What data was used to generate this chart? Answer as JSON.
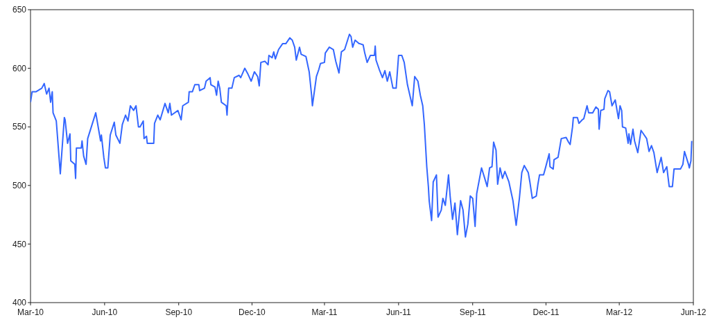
{
  "chart_data": {
    "type": "line",
    "x": [
      "2010-03-01",
      "2010-03-03",
      "2010-03-08",
      "2010-03-15",
      "2010-03-18",
      "2010-03-21",
      "2010-03-24",
      "2010-03-26",
      "2010-03-28",
      "2010-03-29",
      "2010-04-02",
      "2010-04-07",
      "2010-04-12",
      "2010-04-13",
      "2010-04-16",
      "2010-04-19",
      "2010-04-20",
      "2010-04-25",
      "2010-04-26",
      "2010-04-27",
      "2010-05-03",
      "2010-05-04",
      "2010-05-06",
      "2010-05-09",
      "2010-05-11",
      "2010-05-21",
      "2010-05-27",
      "2010-05-28",
      "2010-05-31",
      "2010-06-02",
      "2010-06-05",
      "2010-06-08",
      "2010-06-13",
      "2010-06-15",
      "2010-06-20",
      "2010-06-23",
      "2010-06-27",
      "2010-06-30",
      "2010-07-03",
      "2010-07-07",
      "2010-07-10",
      "2010-07-13",
      "2010-07-15",
      "2010-07-19",
      "2010-07-20",
      "2010-07-23",
      "2010-07-24",
      "2010-08-01",
      "2010-08-02",
      "2010-08-06",
      "2010-08-09",
      "2010-08-15",
      "2010-08-19",
      "2010-08-21",
      "2010-08-23",
      "2010-08-31",
      "2010-09-04",
      "2010-09-06",
      "2010-09-13",
      "2010-09-14",
      "2010-09-18",
      "2010-09-21",
      "2010-09-26",
      "2010-09-27",
      "2010-10-03",
      "2010-10-05",
      "2010-10-10",
      "2010-10-11",
      "2010-10-16",
      "2010-10-18",
      "2010-10-20",
      "2010-10-22",
      "2010-10-24",
      "2010-10-30",
      "2010-10-31",
      "2010-11-02",
      "2010-11-06",
      "2010-11-09",
      "2010-11-15",
      "2010-11-17",
      "2010-11-22",
      "2010-11-26",
      "2010-11-30",
      "2010-12-04",
      "2010-12-08",
      "2010-12-10",
      "2010-12-12",
      "2010-12-17",
      "2010-12-21",
      "2010-12-22",
      "2010-12-26",
      "2010-12-28",
      "2010-12-30",
      "2011-01-03",
      "2011-01-08",
      "2011-01-12",
      "2011-01-17",
      "2011-01-20",
      "2011-01-23",
      "2011-01-25",
      "2011-01-29",
      "2011-01-31",
      "2011-02-06",
      "2011-02-10",
      "2011-02-13",
      "2011-02-14",
      "2011-02-19",
      "2011-02-22",
      "2011-02-24",
      "2011-03-01",
      "2011-03-02",
      "2011-03-07",
      "2011-03-12",
      "2011-03-15",
      "2011-03-19",
      "2011-03-22",
      "2011-03-26",
      "2011-04-01",
      "2011-04-03",
      "2011-04-05",
      "2011-04-08",
      "2011-04-13",
      "2011-04-14",
      "2011-04-18",
      "2011-04-20",
      "2011-04-23",
      "2011-04-27",
      "2011-05-02",
      "2011-05-03",
      "2011-05-04",
      "2011-05-08",
      "2011-05-12",
      "2011-05-15",
      "2011-05-18",
      "2011-05-21",
      "2011-05-25",
      "2011-05-29",
      "2011-06-01",
      "2011-06-05",
      "2011-06-08",
      "2011-06-12",
      "2011-06-18",
      "2011-06-21",
      "2011-06-25",
      "2011-06-28",
      "2011-07-01",
      "2011-07-03",
      "2011-07-06",
      "2011-07-08",
      "2011-07-09",
      "2011-07-12",
      "2011-07-14",
      "2011-07-18",
      "2011-07-20",
      "2011-07-24",
      "2011-07-26",
      "2011-07-29",
      "2011-08-02",
      "2011-08-04",
      "2011-08-07",
      "2011-08-10",
      "2011-08-13",
      "2011-08-17",
      "2011-08-20",
      "2011-08-23",
      "2011-08-26",
      "2011-08-29",
      "2011-09-01",
      "2011-09-04",
      "2011-09-06",
      "2011-09-12",
      "2011-09-16",
      "2011-09-19",
      "2011-09-22",
      "2011-09-25",
      "2011-09-27",
      "2011-09-30",
      "2011-10-02",
      "2011-10-05",
      "2011-10-08",
      "2011-10-11",
      "2011-10-16",
      "2011-10-21",
      "2011-10-25",
      "2011-10-29",
      "2011-11-01",
      "2011-11-04",
      "2011-11-09",
      "2011-11-11",
      "2011-11-14",
      "2011-11-19",
      "2011-11-21",
      "2011-11-23",
      "2011-11-28",
      "2011-11-30",
      "2011-12-05",
      "2011-12-06",
      "2011-12-10",
      "2011-12-11",
      "2011-12-16",
      "2011-12-18",
      "2011-12-20",
      "2011-12-26",
      "2011-12-29",
      "2011-12-31",
      "2012-01-03",
      "2012-01-04",
      "2012-01-09",
      "2012-01-11",
      "2012-01-15",
      "2012-01-17",
      "2012-01-21",
      "2012-01-23",
      "2012-01-28",
      "2012-02-01",
      "2012-02-04",
      "2012-02-05",
      "2012-02-07",
      "2012-02-11",
      "2012-02-12",
      "2012-02-16",
      "2012-02-18",
      "2012-02-21",
      "2012-02-25",
      "2012-02-29",
      "2012-03-02",
      "2012-03-04",
      "2012-03-05",
      "2012-03-09",
      "2012-03-12",
      "2012-03-13",
      "2012-03-15",
      "2012-03-18",
      "2012-03-20",
      "2012-03-24",
      "2012-03-28",
      "2012-04-01",
      "2012-04-04",
      "2012-04-07",
      "2012-04-10",
      "2012-04-13",
      "2012-04-17",
      "2012-04-22",
      "2012-04-25",
      "2012-04-29",
      "2012-05-02",
      "2012-05-06",
      "2012-05-08",
      "2012-05-16",
      "2012-05-19",
      "2012-05-21",
      "2012-05-26",
      "2012-05-27",
      "2012-05-29",
      "2012-05-30"
    ],
    "series": [
      {
        "color": "#3366ff",
        "values": [
          571,
          580,
          580,
          583,
          587,
          578,
          583,
          571,
          580,
          562,
          555,
          510,
          558,
          556,
          536,
          544,
          521,
          518,
          506,
          532,
          532,
          538,
          525,
          518,
          540,
          562,
          538,
          543,
          524,
          515,
          515,
          543,
          554,
          543,
          536,
          552,
          560,
          555,
          568,
          564,
          568,
          550,
          550,
          555,
          540,
          542,
          536,
          536,
          553,
          560,
          556,
          570,
          562,
          570,
          560,
          564,
          556,
          568,
          571,
          580,
          580,
          586,
          586,
          581,
          583,
          589,
          592,
          586,
          584,
          577,
          589,
          583,
          571,
          568,
          560,
          583,
          583,
          592,
          594,
          592,
          600,
          595,
          589,
          597,
          593,
          585,
          605,
          606,
          603,
          611,
          609,
          614,
          608,
          616,
          621,
          621,
          626,
          624,
          618,
          607,
          618,
          612,
          610,
          597,
          577,
          568,
          593,
          599,
          604,
          605,
          613,
          618,
          616,
          606,
          596,
          614,
          616,
          629,
          627,
          618,
          624,
          621,
          621,
          620,
          613,
          605,
          611,
          611,
          619,
          607,
          599,
          592,
          598,
          589,
          597,
          583,
          583,
          611,
          611,
          605,
          586,
          568,
          593,
          589,
          577,
          568,
          552,
          516,
          499,
          487,
          470,
          503,
          509,
          473,
          479,
          489,
          483,
          509,
          491,
          471,
          485,
          458,
          487,
          479,
          456,
          467,
          491,
          489,
          465,
          493,
          515,
          506,
          499,
          515,
          516,
          537,
          530,
          501,
          515,
          506,
          512,
          503,
          487,
          466,
          489,
          511,
          517,
          511,
          503,
          489,
          491,
          501,
          509,
          509,
          514,
          527,
          516,
          514,
          522,
          524,
          532,
          540,
          541,
          537,
          535,
          550,
          558,
          558,
          553,
          556,
          557,
          568,
          562,
          562,
          567,
          565,
          548,
          564,
          565,
          574,
          581,
          580,
          568,
          573,
          557,
          568,
          564,
          550,
          549,
          536,
          544,
          535,
          548,
          538,
          528,
          547,
          543,
          540,
          529,
          534,
          528,
          511,
          524,
          511,
          516,
          499,
          499,
          514,
          514,
          518,
          529,
          518,
          515,
          521,
          538
        ]
      }
    ],
    "xlim": [
      "2010-03-01",
      "2012-06-01"
    ],
    "xticks": [
      {
        "value": "2010-03-01",
        "label": "Mar-10"
      },
      {
        "value": "2010-06-01",
        "label": "Jun-10"
      },
      {
        "value": "2010-09-01",
        "label": "Sep-10"
      },
      {
        "value": "2010-12-01",
        "label": "Dec-10"
      },
      {
        "value": "2011-03-01",
        "label": "Mar-11"
      },
      {
        "value": "2011-06-01",
        "label": "Jun-11"
      },
      {
        "value": "2011-09-01",
        "label": "Sep-11"
      },
      {
        "value": "2011-12-01",
        "label": "Dec-11"
      },
      {
        "value": "2012-03-01",
        "label": "Mar-12"
      },
      {
        "value": "2012-06-01",
        "label": "Jun-12"
      }
    ],
    "ylim": [
      400,
      650
    ],
    "yticks": [
      400,
      450,
      500,
      550,
      600,
      650
    ],
    "marker": "none",
    "line_style": "solid"
  }
}
